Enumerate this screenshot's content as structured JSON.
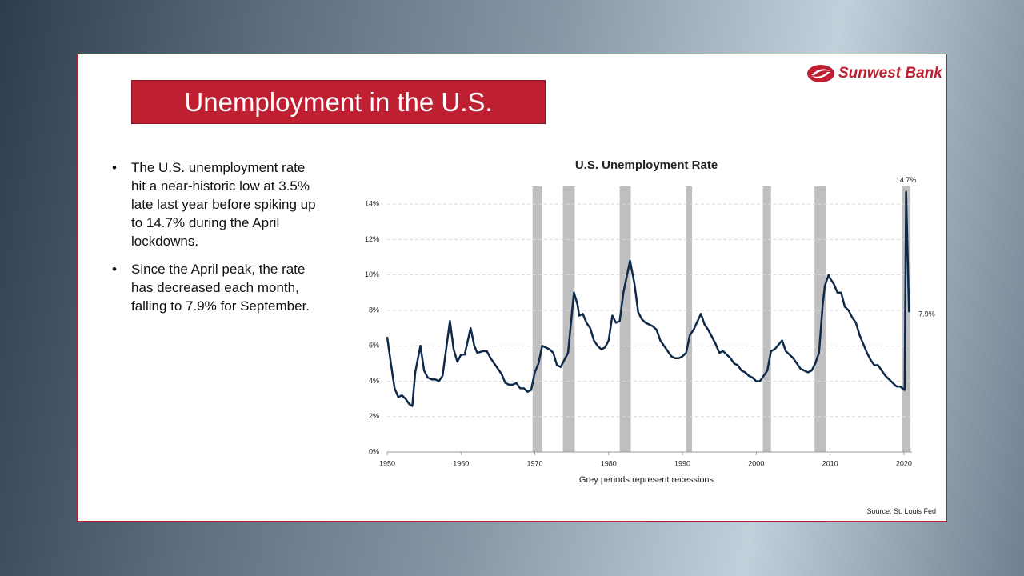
{
  "slide": {
    "title": "Unemployment in the U.S.",
    "logo": "Sunwest Bank",
    "source": "Source: St. Louis Fed"
  },
  "bullets": [
    "The U.S. unemployment rate hit a near-historic low at 3.5% late last year before spiking up to 14.7% during the April lockdowns.",
    "Since the April peak, the rate has decreased each month, falling to 7.9% for September."
  ],
  "chart_data": {
    "type": "line",
    "title": "U.S. Unemployment Rate",
    "x_label": "Grey periods represent recessions",
    "color": "#0d2a4a",
    "x": [
      1950,
      1950.5,
      1951,
      1951.5,
      1952,
      1952.5,
      1953,
      1953.4,
      1953.8,
      1954.5,
      1955,
      1955.5,
      1956,
      1956.5,
      1957,
      1957.5,
      1958.5,
      1959,
      1959.5,
      1960,
      1960.5,
      1961.3,
      1961.8,
      1962.2,
      1963,
      1963.5,
      1964,
      1964.5,
      1965,
      1965.5,
      1966,
      1966.5,
      1967,
      1967.5,
      1968,
      1968.5,
      1969,
      1969.5,
      1970,
      1970.5,
      1971,
      1972,
      1972.5,
      1973,
      1973.5,
      1974,
      1974.5,
      1975.3,
      1975.8,
      1976,
      1976.5,
      1977,
      1977.5,
      1978,
      1978.5,
      1979,
      1979.5,
      1980,
      1980.5,
      1981,
      1981.5,
      1982,
      1982.9,
      1983.5,
      1984,
      1984.5,
      1985,
      1985.5,
      1986,
      1986.5,
      1987,
      1987.5,
      1988,
      1988.5,
      1989,
      1989.5,
      1990,
      1990.5,
      1991,
      1991.5,
      1992.5,
      1993,
      1993.5,
      1994,
      1994.5,
      1995,
      1995.5,
      1996,
      1996.5,
      1997,
      1997.5,
      1998,
      1998.5,
      1999,
      1999.5,
      2000,
      2000.5,
      2001,
      2001.5,
      2002,
      2002.5,
      2003.5,
      2004,
      2004.5,
      2005,
      2005.5,
      2006,
      2006.5,
      2007,
      2007.5,
      2008,
      2008.5,
      2009,
      2009.3,
      2009.8,
      2010,
      2010.5,
      2011,
      2011.5,
      2012,
      2012.5,
      2013,
      2013.5,
      2014,
      2014.5,
      2015,
      2015.5,
      2016,
      2016.5,
      2017,
      2017.5,
      2018,
      2018.5,
      2019,
      2019.5,
      2020.1,
      2020.3,
      2020.7
    ],
    "values": [
      6.5,
      5.0,
      3.6,
      3.1,
      3.2,
      3.0,
      2.7,
      2.6,
      4.5,
      6.0,
      4.6,
      4.2,
      4.1,
      4.1,
      4.0,
      4.3,
      7.4,
      5.8,
      5.1,
      5.5,
      5.5,
      7.0,
      6.0,
      5.6,
      5.7,
      5.7,
      5.3,
      5.0,
      4.7,
      4.4,
      3.9,
      3.8,
      3.8,
      3.9,
      3.6,
      3.6,
      3.4,
      3.5,
      4.5,
      5.0,
      6.0,
      5.8,
      5.6,
      4.9,
      4.8,
      5.2,
      5.6,
      9.0,
      8.3,
      7.7,
      7.8,
      7.3,
      7.0,
      6.3,
      6.0,
      5.8,
      5.9,
      6.3,
      7.7,
      7.3,
      7.4,
      9.0,
      10.8,
      9.5,
      7.9,
      7.5,
      7.3,
      7.2,
      7.1,
      6.9,
      6.3,
      6.0,
      5.7,
      5.4,
      5.3,
      5.3,
      5.4,
      5.6,
      6.6,
      6.9,
      7.8,
      7.2,
      6.9,
      6.5,
      6.1,
      5.6,
      5.7,
      5.5,
      5.3,
      5.0,
      4.9,
      4.6,
      4.5,
      4.3,
      4.2,
      4.0,
      4.0,
      4.3,
      4.6,
      5.7,
      5.8,
      6.3,
      5.7,
      5.5,
      5.3,
      5.0,
      4.7,
      4.6,
      4.5,
      4.6,
      5.0,
      5.6,
      8.3,
      9.4,
      10.0,
      9.8,
      9.5,
      9.0,
      9.0,
      8.2,
      8.0,
      7.6,
      7.3,
      6.6,
      6.1,
      5.6,
      5.2,
      4.9,
      4.9,
      4.6,
      4.3,
      4.1,
      3.9,
      3.7,
      3.7,
      3.5,
      14.7,
      7.9
    ],
    "annotations": [
      {
        "text": "14.7%",
        "x": 2020.3,
        "y": 14.7
      },
      {
        "text": "7.9%",
        "x": 2020.7,
        "y": 7.9
      }
    ],
    "recessions": [
      [
        1969.7,
        1971.0
      ],
      [
        1973.8,
        1975.4
      ],
      [
        1981.5,
        1983.0
      ],
      [
        1990.5,
        1991.3
      ],
      [
        2000.9,
        2002.0
      ],
      [
        2007.9,
        2009.4
      ],
      [
        2019.8,
        2020.9
      ]
    ],
    "xlim": [
      1950,
      2021.1
    ],
    "xticks": [
      1950,
      1960,
      1970,
      1980,
      1990,
      2000,
      2010,
      2020
    ],
    "ylim": [
      0,
      15
    ],
    "yticks": [
      {
        "value": 0,
        "label": "0%"
      },
      {
        "value": 2,
        "label": "2%"
      },
      {
        "value": 4,
        "label": "4%"
      },
      {
        "value": 6,
        "label": "6%"
      },
      {
        "value": 8,
        "label": "8%"
      },
      {
        "value": 10,
        "label": "10%"
      },
      {
        "value": 12,
        "label": "12%"
      },
      {
        "value": 14,
        "label": "14%"
      }
    ],
    "grid": true
  }
}
